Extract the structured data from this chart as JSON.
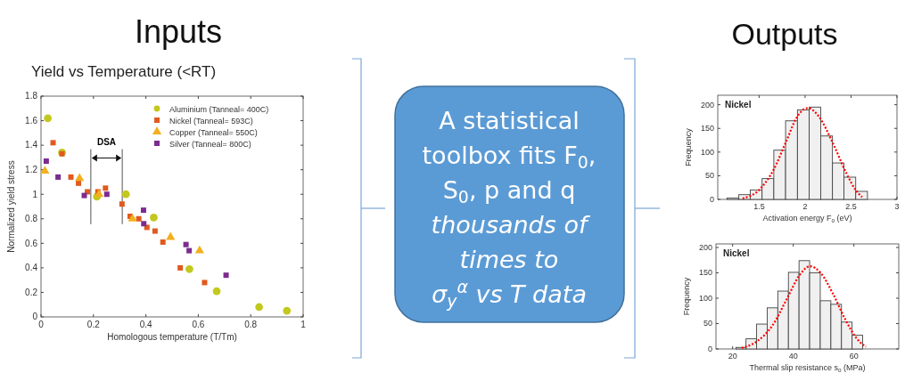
{
  "chart_data": [
    {
      "type": "scatter",
      "title": "Yield vs Temperature (<RT)",
      "xlabel": "Homologous temperature (T/Tm)",
      "ylabel": "Normalized yield stress",
      "xlim": [
        0,
        1
      ],
      "ylim": [
        0,
        1.8
      ],
      "xticks": [
        0,
        0.2,
        0.4,
        0.6,
        0.8,
        1
      ],
      "yticks": [
        0,
        0.2,
        0.4,
        0.6,
        0.8,
        1,
        1.2,
        1.4,
        1.6,
        1.8
      ],
      "legend": "top right",
      "grid": false,
      "ref_lines": [
        {
          "axis": "x",
          "value": 0.19,
          "color": "#555555"
        },
        {
          "axis": "x",
          "value": 0.31,
          "color": "#555555"
        }
      ],
      "annotations": [
        "DSA"
      ],
      "series": [
        {
          "name": "Aluminium (Tanneal= 400C)",
          "color": "#c3c81e",
          "marker": "circle",
          "x": [
            0.026,
            0.08,
            0.213,
            0.324,
            0.43,
            0.566,
            0.67,
            0.832,
            0.938
          ],
          "values": [
            1.62,
            1.34,
            0.98,
            1.0,
            0.81,
            0.39,
            0.21,
            0.08,
            0.05
          ]
        },
        {
          "name": "Nickel (Tanneal= 593C)",
          "color": "#e05a1e",
          "marker": "square",
          "x": [
            0.046,
            0.08,
            0.114,
            0.143,
            0.177,
            0.217,
            0.246,
            0.309,
            0.34,
            0.373,
            0.404,
            0.435,
            0.465,
            0.531,
            0.624
          ],
          "values": [
            1.42,
            1.33,
            1.14,
            1.09,
            1.02,
            1.02,
            1.05,
            0.92,
            0.82,
            0.8,
            0.73,
            0.7,
            0.61,
            0.4,
            0.28
          ]
        },
        {
          "name": "Copper (Tanneal= 550C)",
          "color": "#f2b01e",
          "marker": "triangle",
          "x": [
            0.015,
            0.147,
            0.221,
            0.349,
            0.494,
            0.605
          ],
          "values": [
            1.19,
            1.13,
            1.0,
            0.8,
            0.65,
            0.54
          ]
        },
        {
          "name": "Silver (Tanneal= 800C)",
          "color": "#7b2c8f",
          "marker": "square",
          "x": [
            0.02,
            0.065,
            0.165,
            0.251,
            0.391,
            0.392,
            0.553,
            0.565,
            0.706
          ],
          "values": [
            1.27,
            1.14,
            0.99,
            1.0,
            0.87,
            0.76,
            0.59,
            0.54,
            0.34
          ]
        }
      ]
    },
    {
      "type": "other",
      "annotations": [
        "Inputs",
        "A statistical",
        "toolbox fits F$_{0}$,",
        "S$_{0}$, p and q",
        "thousands of",
        "times to",
        "σ$_{y}$$^{α}$ vs T data",
        "Outputs"
      ]
    },
    {
      "type": "histogram",
      "xlabel": "Activation energy F$_{o}$ (eV)",
      "ylabel": "Frequency",
      "annotations": [
        "Nickel"
      ],
      "xlim": [
        1.05,
        3
      ],
      "ylim": [
        0,
        220
      ],
      "xticks": [
        1.5,
        2,
        2.5,
        3
      ],
      "yticks": [
        0,
        50,
        100,
        150,
        200
      ],
      "color": "#f0f0f0",
      "bins": [
        1.151,
        1.279,
        1.404,
        1.532,
        1.66,
        1.788,
        1.917,
        2.045,
        2.17,
        2.298,
        2.423,
        2.551,
        2.679
      ],
      "values": [
        3,
        10,
        20,
        44,
        104,
        166,
        189,
        195,
        134,
        77,
        47,
        17
      ],
      "series": [
        {
          "type": "line",
          "color": "#ff0000",
          "line_style": "dotted",
          "x": [
            1.32,
            1.5,
            1.65,
            1.8,
            1.9,
            2.03,
            2.15,
            2.3,
            2.45,
            2.55,
            2.62
          ],
          "values": [
            2,
            20,
            60,
            125,
            170,
            193,
            175,
            120,
            55,
            20,
            5
          ]
        }
      ]
    },
    {
      "type": "histogram",
      "xlabel": "Thermal slip resistance s$_{o}$ (MPa)",
      "ylabel": "Frequency",
      "annotations": [
        "Nickel"
      ],
      "xlim": [
        14.5,
        74.8
      ],
      "ylim": [
        0,
        207
      ],
      "xticks": [
        20,
        40,
        60
      ],
      "yticks": [
        0,
        50,
        100,
        150,
        200
      ],
      "color": "#f0f0f0",
      "bins": [
        21.1,
        24.4,
        27.9,
        31.4,
        34.9,
        38.4,
        41.9,
        45.4,
        48.9,
        52.4,
        55.9,
        59.4,
        62.9
      ],
      "values": [
        3,
        20,
        49,
        81,
        114,
        151,
        174,
        150,
        95,
        88,
        53,
        27
      ],
      "series": [
        {
          "type": "line",
          "color": "#ff0000",
          "line_style": "dotted",
          "x": [
            23,
            28,
            33,
            38,
            42,
            45.5,
            49,
            53,
            57,
            61,
            64
          ],
          "values": [
            2,
            15,
            45,
            100,
            145,
            163,
            150,
            110,
            60,
            20,
            4
          ]
        }
      ]
    }
  ]
}
